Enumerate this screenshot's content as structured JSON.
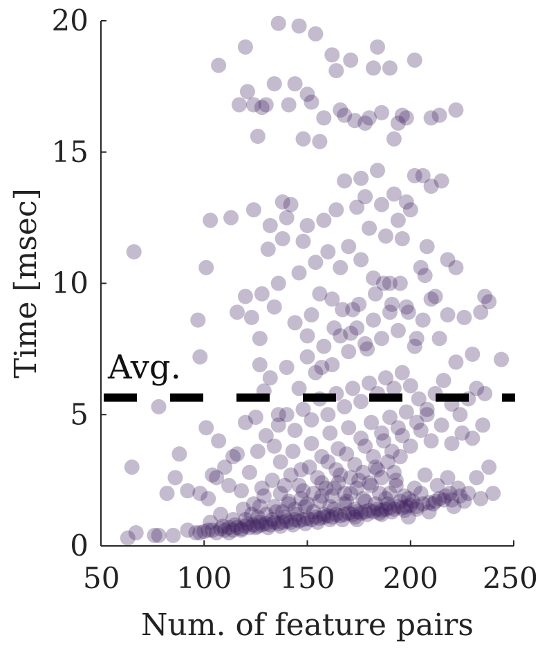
{
  "chart_data": {
    "type": "scatter",
    "title": "",
    "xlabel": "Num. of feature pairs",
    "ylabel": "Time [msec]",
    "xlim": [
      50,
      250
    ],
    "ylim": [
      0,
      20
    ],
    "xticks": [
      50,
      100,
      150,
      200,
      250
    ],
    "yticks": [
      0,
      5,
      10,
      15,
      20
    ],
    "xtick_labels": [
      "50",
      "100",
      "150",
      "200",
      "250"
    ],
    "ytick_labels": [
      "0",
      "5",
      "10",
      "15",
      "20"
    ],
    "grid": false,
    "legend": "none",
    "point_color": "#3b1d5c",
    "point_opacity": 0.3,
    "average": {
      "y": 5.65,
      "label": "Avg.",
      "style": "dashed",
      "color": "#000000"
    },
    "points": [
      [
        63,
        0.3
      ],
      [
        67,
        0.5
      ],
      [
        76,
        0.4
      ],
      [
        78,
        0.4
      ],
      [
        85,
        0.4
      ],
      [
        92,
        0.6
      ],
      [
        96,
        0.5
      ],
      [
        98,
        0.5
      ],
      [
        100,
        0.55
      ],
      [
        102,
        0.6
      ],
      [
        104,
        0.6
      ],
      [
        106,
        0.5
      ],
      [
        108,
        0.65
      ],
      [
        110,
        0.6
      ],
      [
        112,
        0.7
      ],
      [
        114,
        0.6
      ],
      [
        116,
        0.7
      ],
      [
        118,
        0.65
      ],
      [
        120,
        0.75
      ],
      [
        122,
        0.7
      ],
      [
        124,
        0.8
      ],
      [
        126,
        0.75
      ],
      [
        128,
        0.8
      ],
      [
        130,
        0.85
      ],
      [
        132,
        0.8
      ],
      [
        134,
        0.9
      ],
      [
        136,
        0.85
      ],
      [
        138,
        0.9
      ],
      [
        140,
        0.95
      ],
      [
        142,
        0.9
      ],
      [
        144,
        1.0
      ],
      [
        146,
        0.95
      ],
      [
        148,
        1.0
      ],
      [
        150,
        1.05
      ],
      [
        152,
        1.0
      ],
      [
        154,
        1.1
      ],
      [
        156,
        1.05
      ],
      [
        158,
        1.1
      ],
      [
        160,
        1.15
      ],
      [
        162,
        1.1
      ],
      [
        164,
        1.2
      ],
      [
        166,
        1.15
      ],
      [
        168,
        1.2
      ],
      [
        170,
        1.25
      ],
      [
        172,
        1.2
      ],
      [
        174,
        1.3
      ],
      [
        176,
        1.25
      ],
      [
        178,
        1.3
      ],
      [
        180,
        1.35
      ],
      [
        182,
        1.3
      ],
      [
        184,
        1.4
      ],
      [
        186,
        1.35
      ],
      [
        188,
        1.4
      ],
      [
        190,
        1.45
      ],
      [
        192,
        1.4
      ],
      [
        194,
        1.5
      ],
      [
        196,
        1.45
      ],
      [
        198,
        1.5
      ],
      [
        200,
        1.55
      ],
      [
        203,
        1.5
      ],
      [
        206,
        1.6
      ],
      [
        209,
        1.65
      ],
      [
        212,
        1.7
      ],
      [
        216,
        1.75
      ],
      [
        220,
        1.75
      ],
      [
        224,
        1.9
      ],
      [
        228,
        2.0
      ],
      [
        112,
        0.5
      ],
      [
        118,
        0.6
      ],
      [
        125,
        0.7
      ],
      [
        131,
        0.7
      ],
      [
        137,
        0.75
      ],
      [
        143,
        0.8
      ],
      [
        149,
        0.85
      ],
      [
        155,
        0.9
      ],
      [
        161,
        1.0
      ],
      [
        167,
        1.0
      ],
      [
        173,
        1.1
      ],
      [
        179,
        1.2
      ],
      [
        185,
        1.25
      ],
      [
        191,
        1.3
      ],
      [
        197,
        1.35
      ],
      [
        203,
        1.4
      ],
      [
        120,
        1.0
      ],
      [
        126,
        1.1
      ],
      [
        130,
        1.2
      ],
      [
        134,
        1.5
      ],
      [
        138,
        1.3
      ],
      [
        141,
        1.6
      ],
      [
        144,
        1.4
      ],
      [
        147,
        1.8
      ],
      [
        150,
        1.6
      ],
      [
        153,
        2.0
      ],
      [
        156,
        1.7
      ],
      [
        159,
        2.2
      ],
      [
        162,
        1.9
      ],
      [
        165,
        2.4
      ],
      [
        168,
        2.0
      ],
      [
        171,
        2.6
      ],
      [
        174,
        2.2
      ],
      [
        177,
        2.8
      ],
      [
        180,
        2.4
      ],
      [
        183,
        3.0
      ],
      [
        186,
        2.6
      ],
      [
        189,
        3.2
      ],
      [
        192,
        2.8
      ],
      [
        195,
        3.4
      ],
      [
        128,
        2.2
      ],
      [
        133,
        2.5
      ],
      [
        137,
        2.0
      ],
      [
        142,
        2.7
      ],
      [
        146,
        2.3
      ],
      [
        151,
        3.0
      ],
      [
        155,
        2.6
      ],
      [
        160,
        3.2
      ],
      [
        164,
        2.9
      ],
      [
        169,
        3.5
      ],
      [
        173,
        3.1
      ],
      [
        178,
        3.8
      ],
      [
        182,
        3.4
      ],
      [
        187,
        4.0
      ],
      [
        191,
        3.6
      ],
      [
        196,
        4.2
      ],
      [
        200,
        3.8
      ],
      [
        205,
        4.4
      ],
      [
        210,
        4.0
      ],
      [
        215,
        4.6
      ],
      [
        220,
        3.9
      ],
      [
        225,
        4.3
      ],
      [
        230,
        4.1
      ],
      [
        235,
        4.6
      ],
      [
        124,
        1.6
      ],
      [
        129,
        1.9
      ],
      [
        139,
        2.3
      ],
      [
        148,
        2.1
      ],
      [
        157,
        2.4
      ],
      [
        166,
        2.7
      ],
      [
        175,
        2.5
      ],
      [
        184,
        2.9
      ],
      [
        193,
        2.5
      ],
      [
        202,
        2.2
      ],
      [
        207,
        2.7
      ],
      [
        213,
        2.3
      ],
      [
        218,
        2.6
      ],
      [
        223,
        2.2
      ],
      [
        232,
        2.6
      ],
      [
        238,
        3.0
      ],
      [
        240,
        2.0
      ],
      [
        234,
        1.8
      ],
      [
        226,
        1.7
      ],
      [
        217,
        1.9
      ],
      [
        211,
        1.6
      ],
      [
        205,
        2.0
      ],
      [
        199,
        1.8
      ],
      [
        190,
        2.0
      ],
      [
        98,
        2.0
      ],
      [
        102,
        1.8
      ],
      [
        106,
        2.6
      ],
      [
        110,
        3.0
      ],
      [
        114,
        3.4
      ],
      [
        118,
        2.1
      ],
      [
        122,
        2.8
      ],
      [
        126,
        3.6
      ],
      [
        130,
        4.2
      ],
      [
        134,
        3.8
      ],
      [
        136,
        4.6
      ],
      [
        140,
        5.0
      ],
      [
        144,
        4.4
      ],
      [
        148,
        5.2
      ],
      [
        152,
        4.8
      ],
      [
        156,
        5.6
      ],
      [
        160,
        5.0
      ],
      [
        164,
        5.8
      ],
      [
        168,
        5.3
      ],
      [
        172,
        6.0
      ],
      [
        176,
        5.5
      ],
      [
        180,
        6.2
      ],
      [
        184,
        5.8
      ],
      [
        188,
        6.4
      ],
      [
        192,
        6.0
      ],
      [
        196,
        6.6
      ],
      [
        200,
        6.1
      ],
      [
        204,
        5.6
      ],
      [
        208,
        5.2
      ],
      [
        212,
        5.8
      ],
      [
        216,
        6.3
      ],
      [
        220,
        5.4
      ],
      [
        224,
        5.0
      ],
      [
        228,
        5.6
      ],
      [
        232,
        6.0
      ],
      [
        236,
        5.8
      ],
      [
        82,
        2.0
      ],
      [
        86,
        2.6
      ],
      [
        88,
        3.5
      ],
      [
        92,
        2.1
      ],
      [
        78,
        5.3
      ],
      [
        65,
        3.0
      ],
      [
        101,
        4.5
      ],
      [
        104,
        2.7
      ],
      [
        107,
        4.0
      ],
      [
        112,
        2.3
      ],
      [
        116,
        3.5
      ],
      [
        120,
        4.7
      ],
      [
        125,
        4.9
      ],
      [
        129,
        5.9
      ],
      [
        132,
        6.4
      ],
      [
        136,
        5.0
      ],
      [
        140,
        6.8
      ],
      [
        146,
        6.0
      ],
      [
        150,
        7.2
      ],
      [
        154,
        6.6
      ],
      [
        158,
        7.6
      ],
      [
        162,
        6.9
      ],
      [
        166,
        8.0
      ],
      [
        170,
        7.4
      ],
      [
        174,
        8.3
      ],
      [
        178,
        7.7
      ],
      [
        182,
        8.6
      ],
      [
        186,
        7.9
      ],
      [
        190,
        8.9
      ],
      [
        194,
        8.2
      ],
      [
        198,
        9.1
      ],
      [
        202,
        7.6
      ],
      [
        206,
        8.6
      ],
      [
        210,
        9.4
      ],
      [
        214,
        7.9
      ],
      [
        218,
        8.8
      ],
      [
        222,
        7.0
      ],
      [
        226,
        8.7
      ],
      [
        230,
        7.3
      ],
      [
        234,
        8.9
      ],
      [
        238,
        9.3
      ],
      [
        244,
        7.1
      ],
      [
        66,
        11.2
      ],
      [
        97,
        8.6
      ],
      [
        98,
        7.2
      ],
      [
        101,
        10.6
      ],
      [
        103,
        12.4
      ],
      [
        107,
        18.3
      ],
      [
        113,
        12.5
      ],
      [
        116,
        8.9
      ],
      [
        120,
        9.5
      ],
      [
        123,
        8.7
      ],
      [
        124,
        12.8
      ],
      [
        127,
        6.9
      ],
      [
        127,
        7.9
      ],
      [
        128,
        9.6
      ],
      [
        131,
        11.3
      ],
      [
        132,
        12.2
      ],
      [
        134,
        9.1
      ],
      [
        136,
        10.0
      ],
      [
        138,
        11.7
      ],
      [
        140,
        12.5
      ],
      [
        142,
        13.0
      ],
      [
        144,
        8.5
      ],
      [
        146,
        10.4
      ],
      [
        148,
        11.6
      ],
      [
        150,
        12.2
      ],
      [
        152,
        8.8
      ],
      [
        154,
        10.8
      ],
      [
        156,
        9.6
      ],
      [
        158,
        12.4
      ],
      [
        160,
        11.2
      ],
      [
        162,
        9.4
      ],
      [
        164,
        12.8
      ],
      [
        166,
        10.6
      ],
      [
        168,
        13.9
      ],
      [
        170,
        11.4
      ],
      [
        172,
        9.0
      ],
      [
        174,
        12.9
      ],
      [
        176,
        10.9
      ],
      [
        178,
        13.3
      ],
      [
        180,
        12.1
      ],
      [
        182,
        10.2
      ],
      [
        184,
        14.3
      ],
      [
        186,
        13.0
      ],
      [
        188,
        11.8
      ],
      [
        190,
        10.0
      ],
      [
        192,
        13.4
      ],
      [
        194,
        12.4
      ],
      [
        196,
        11.7
      ],
      [
        198,
        13.1
      ],
      [
        200,
        12.8
      ],
      [
        202,
        14.1
      ],
      [
        205,
        10.6
      ],
      [
        208,
        11.4
      ],
      [
        210,
        13.7
      ],
      [
        212,
        9.5
      ],
      [
        215,
        13.9
      ],
      [
        218,
        10.9
      ],
      [
        222,
        10.6
      ],
      [
        236,
        9.5
      ],
      [
        117,
        16.8
      ],
      [
        120,
        19.0
      ],
      [
        121,
        17.3
      ],
      [
        124,
        16.8
      ],
      [
        126,
        15.6
      ],
      [
        128,
        16.7
      ],
      [
        130,
        16.8
      ],
      [
        134,
        17.6
      ],
      [
        136,
        19.9
      ],
      [
        141,
        16.8
      ],
      [
        144,
        17.6
      ],
      [
        146,
        19.8
      ],
      [
        148,
        15.5
      ],
      [
        150,
        17.2
      ],
      [
        152,
        16.9
      ],
      [
        154,
        19.5
      ],
      [
        156,
        15.4
      ],
      [
        158,
        16.3
      ],
      [
        162,
        18.7
      ],
      [
        164,
        18.1
      ],
      [
        166,
        16.6
      ],
      [
        168,
        16.4
      ],
      [
        171,
        18.5
      ],
      [
        173,
        16.2
      ],
      [
        176,
        14.0
      ],
      [
        178,
        16.1
      ],
      [
        180,
        16.3
      ],
      [
        182,
        18.2
      ],
      [
        184,
        19.0
      ],
      [
        186,
        16.5
      ],
      [
        190,
        18.2
      ],
      [
        192,
        15.5
      ],
      [
        194,
        16.1
      ],
      [
        196,
        16.4
      ],
      [
        198,
        16.3
      ],
      [
        202,
        18.5
      ],
      [
        206,
        14.1
      ],
      [
        210,
        16.3
      ],
      [
        214,
        16.4
      ],
      [
        222,
        16.6
      ],
      [
        138,
        13.1
      ],
      [
        150,
        8.0
      ],
      [
        157,
        6.8
      ],
      [
        163,
        8.3
      ],
      [
        167,
        9.0
      ],
      [
        171,
        8.1
      ],
      [
        175,
        9.2
      ],
      [
        179,
        7.5
      ],
      [
        183,
        9.6
      ],
      [
        187,
        10.0
      ],
      [
        191,
        9.2
      ],
      [
        195,
        10.0
      ],
      [
        199,
        8.9
      ],
      [
        203,
        7.9
      ],
      [
        207,
        10.3
      ],
      [
        103,
        0.9
      ],
      [
        108,
        1.2
      ],
      [
        114,
        1.0
      ],
      [
        119,
        1.4
      ],
      [
        123,
        1.2
      ],
      [
        127,
        1.5
      ],
      [
        135,
        1.3
      ],
      [
        141,
        1.7
      ],
      [
        149,
        1.5
      ],
      [
        153,
        1.3
      ],
      [
        157,
        1.9
      ],
      [
        161,
        1.5
      ],
      [
        163,
        2.2
      ],
      [
        169,
        1.7
      ],
      [
        171,
        2.0
      ],
      [
        177,
        1.8
      ],
      [
        181,
        2.3
      ],
      [
        185,
        2.0
      ],
      [
        189,
        1.6
      ],
      [
        193,
        2.3
      ],
      [
        197,
        1.9
      ],
      [
        201,
        1.7
      ],
      [
        214,
        1.8
      ],
      [
        219,
        2.0
      ],
      [
        137,
        3.2
      ],
      [
        143,
        3.6
      ],
      [
        147,
        2.9
      ],
      [
        152,
        3.9
      ],
      [
        157,
        3.4
      ],
      [
        161,
        4.3
      ],
      [
        165,
        3.7
      ],
      [
        170,
        4.5
      ],
      [
        176,
        4.1
      ],
      [
        181,
        4.7
      ],
      [
        186,
        4.3
      ],
      [
        190,
        4.9
      ],
      [
        194,
        4.5
      ],
      [
        198,
        5.1
      ],
      [
        203,
        4.7
      ],
      [
        208,
        5.0
      ],
      [
        158,
        1.2
      ],
      [
        163,
        1.4
      ],
      [
        168,
        1.6
      ],
      [
        173,
        1.4
      ],
      [
        178,
        1.7
      ],
      [
        183,
        1.6
      ],
      [
        188,
        1.8
      ],
      [
        195,
        1.7
      ],
      [
        145,
        1.2
      ],
      [
        139,
        1.1
      ],
      [
        133,
        1.0
      ],
      [
        127,
        0.9
      ],
      [
        121,
        0.85
      ],
      [
        115,
        0.8
      ],
      [
        109,
        0.75
      ],
      [
        174,
        1.0
      ],
      [
        186,
        1.2
      ],
      [
        199,
        1.1
      ],
      [
        209,
        1.3
      ],
      [
        221,
        1.5
      ]
    ]
  }
}
